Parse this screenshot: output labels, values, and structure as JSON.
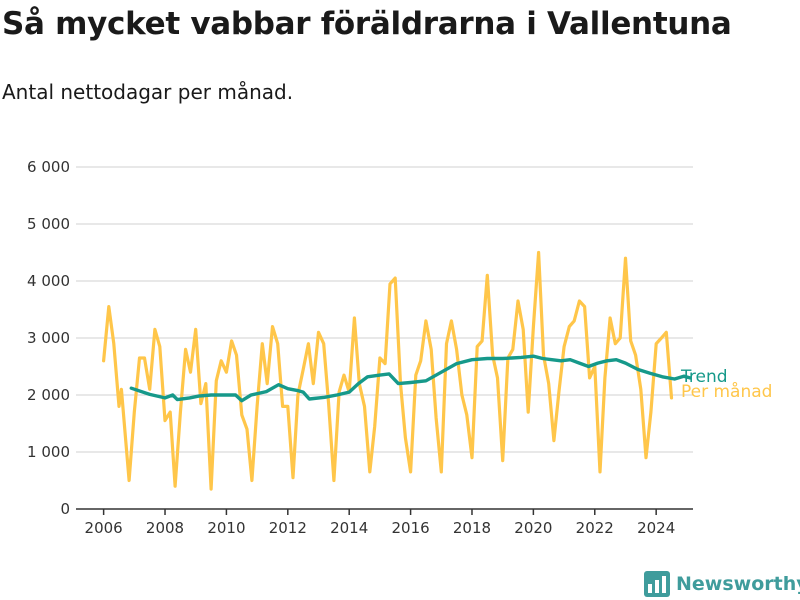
{
  "title": "Så mycket vabbar föräldrarna i Vallentuna",
  "subtitle": "Antal nettodagar per månad.",
  "brand": {
    "name": "Newsworthy"
  },
  "colors": {
    "trend": "#16998a",
    "monthly": "#ffc64a",
    "grid": "#d9d9d9",
    "axis": "#333333"
  },
  "chart_data": {
    "type": "line",
    "title": "Så mycket vabbar föräldrarna i Vallentuna",
    "subtitle": "Antal nettodagar per månad.",
    "xlabel": "",
    "ylabel": "",
    "xlim": [
      2005.1,
      2025.2
    ],
    "ylim": [
      0,
      6000
    ],
    "x_ticks": [
      2006,
      2008,
      2010,
      2012,
      2014,
      2016,
      2018,
      2020,
      2022,
      2024
    ],
    "x_tick_labels": [
      "2006",
      "2008",
      "2010",
      "2012",
      "2014",
      "2016",
      "2018",
      "2020",
      "2022",
      "2024"
    ],
    "y_ticks": [
      0,
      1000,
      2000,
      3000,
      4000,
      5000,
      6000
    ],
    "y_tick_labels": [
      "0",
      "1 000",
      "2 000",
      "3 000",
      "4 000",
      "5 000",
      "6 000"
    ],
    "grid": "horizontal",
    "legend": "direct labels at line ends",
    "series": [
      {
        "name": "Per månad",
        "color": "#ffc64a",
        "points": [
          [
            2006.0,
            2600
          ],
          [
            2006.17,
            3550
          ],
          [
            2006.33,
            2900
          ],
          [
            2006.5,
            1800
          ],
          [
            2006.58,
            2100
          ],
          [
            2006.83,
            500
          ],
          [
            2007.0,
            1700
          ],
          [
            2007.17,
            2650
          ],
          [
            2007.33,
            2650
          ],
          [
            2007.5,
            2100
          ],
          [
            2007.67,
            3150
          ],
          [
            2007.83,
            2850
          ],
          [
            2008.0,
            1550
          ],
          [
            2008.17,
            1700
          ],
          [
            2008.33,
            400
          ],
          [
            2008.5,
            1700
          ],
          [
            2008.67,
            2800
          ],
          [
            2008.83,
            2400
          ],
          [
            2009.0,
            3150
          ],
          [
            2009.17,
            1850
          ],
          [
            2009.33,
            2200
          ],
          [
            2009.5,
            350
          ],
          [
            2009.67,
            2250
          ],
          [
            2009.83,
            2600
          ],
          [
            2010.0,
            2400
          ],
          [
            2010.17,
            2950
          ],
          [
            2010.33,
            2700
          ],
          [
            2010.5,
            1650
          ],
          [
            2010.67,
            1400
          ],
          [
            2010.83,
            500
          ],
          [
            2011.0,
            1800
          ],
          [
            2011.17,
            2900
          ],
          [
            2011.33,
            2200
          ],
          [
            2011.5,
            3200
          ],
          [
            2011.67,
            2900
          ],
          [
            2011.83,
            1800
          ],
          [
            2012.0,
            1800
          ],
          [
            2012.17,
            550
          ],
          [
            2012.33,
            2000
          ],
          [
            2012.5,
            2450
          ],
          [
            2012.67,
            2900
          ],
          [
            2012.83,
            2200
          ],
          [
            2013.0,
            3100
          ],
          [
            2013.17,
            2900
          ],
          [
            2013.33,
            1850
          ],
          [
            2013.5,
            500
          ],
          [
            2013.67,
            2050
          ],
          [
            2013.83,
            2350
          ],
          [
            2014.0,
            2050
          ],
          [
            2014.17,
            3350
          ],
          [
            2014.33,
            2200
          ],
          [
            2014.5,
            1800
          ],
          [
            2014.67,
            650
          ],
          [
            2014.83,
            1450
          ],
          [
            2015.0,
            2650
          ],
          [
            2015.17,
            2550
          ],
          [
            2015.33,
            3950
          ],
          [
            2015.5,
            4050
          ],
          [
            2015.67,
            2200
          ],
          [
            2015.83,
            1250
          ],
          [
            2016.0,
            650
          ],
          [
            2016.17,
            2350
          ],
          [
            2016.33,
            2600
          ],
          [
            2016.5,
            3300
          ],
          [
            2016.67,
            2800
          ],
          [
            2016.83,
            1600
          ],
          [
            2017.0,
            650
          ],
          [
            2017.17,
            2900
          ],
          [
            2017.33,
            3300
          ],
          [
            2017.5,
            2800
          ],
          [
            2017.67,
            2000
          ],
          [
            2017.83,
            1650
          ],
          [
            2018.0,
            900
          ],
          [
            2018.17,
            2850
          ],
          [
            2018.33,
            2950
          ],
          [
            2018.5,
            4100
          ],
          [
            2018.67,
            2700
          ],
          [
            2018.83,
            2300
          ],
          [
            2019.0,
            850
          ],
          [
            2019.17,
            2650
          ],
          [
            2019.33,
            2800
          ],
          [
            2019.5,
            3650
          ],
          [
            2019.67,
            3150
          ],
          [
            2019.83,
            1700
          ],
          [
            2020.0,
            3200
          ],
          [
            2020.17,
            4500
          ],
          [
            2020.33,
            2700
          ],
          [
            2020.5,
            2200
          ],
          [
            2020.67,
            1200
          ],
          [
            2020.83,
            2050
          ],
          [
            2021.0,
            2850
          ],
          [
            2021.17,
            3200
          ],
          [
            2021.33,
            3300
          ],
          [
            2021.5,
            3650
          ],
          [
            2021.67,
            3550
          ],
          [
            2021.83,
            2300
          ],
          [
            2022.0,
            2500
          ],
          [
            2022.17,
            650
          ],
          [
            2022.33,
            2300
          ],
          [
            2022.5,
            3350
          ],
          [
            2022.67,
            2900
          ],
          [
            2022.83,
            3000
          ],
          [
            2023.0,
            4400
          ],
          [
            2023.17,
            2950
          ],
          [
            2023.33,
            2700
          ],
          [
            2023.5,
            2100
          ],
          [
            2023.67,
            900
          ],
          [
            2023.83,
            1700
          ],
          [
            2024.0,
            2900
          ],
          [
            2024.17,
            3000
          ],
          [
            2024.33,
            3100
          ],
          [
            2024.5,
            1950
          ]
        ]
      },
      {
        "name": "Trend",
        "color": "#16998a",
        "points": [
          [
            2006.9,
            2120
          ],
          [
            2007.5,
            2010
          ],
          [
            2008.0,
            1950
          ],
          [
            2008.25,
            2000
          ],
          [
            2008.4,
            1920
          ],
          [
            2008.8,
            1950
          ],
          [
            2009.1,
            1980
          ],
          [
            2009.5,
            2000
          ],
          [
            2010.0,
            2000
          ],
          [
            2010.3,
            2000
          ],
          [
            2010.5,
            1900
          ],
          [
            2010.8,
            2000
          ],
          [
            2011.3,
            2060
          ],
          [
            2011.7,
            2180
          ],
          [
            2012.0,
            2110
          ],
          [
            2012.3,
            2080
          ],
          [
            2012.5,
            2050
          ],
          [
            2012.7,
            1930
          ],
          [
            2013.2,
            1960
          ],
          [
            2013.6,
            2000
          ],
          [
            2014.0,
            2050
          ],
          [
            2014.3,
            2200
          ],
          [
            2014.6,
            2320
          ],
          [
            2015.0,
            2350
          ],
          [
            2015.3,
            2370
          ],
          [
            2015.6,
            2200
          ],
          [
            2016.0,
            2220
          ],
          [
            2016.5,
            2250
          ],
          [
            2017.0,
            2400
          ],
          [
            2017.5,
            2550
          ],
          [
            2018.0,
            2620
          ],
          [
            2018.5,
            2640
          ],
          [
            2018.8,
            2640
          ],
          [
            2019.0,
            2640
          ],
          [
            2019.3,
            2650
          ],
          [
            2019.6,
            2660
          ],
          [
            2020.0,
            2680
          ],
          [
            2020.3,
            2640
          ],
          [
            2020.6,
            2620
          ],
          [
            2020.9,
            2600
          ],
          [
            2021.2,
            2620
          ],
          [
            2021.5,
            2560
          ],
          [
            2021.8,
            2500
          ],
          [
            2022.1,
            2560
          ],
          [
            2022.4,
            2600
          ],
          [
            2022.7,
            2620
          ],
          [
            2023.0,
            2560
          ],
          [
            2023.4,
            2450
          ],
          [
            2023.8,
            2380
          ],
          [
            2024.2,
            2320
          ],
          [
            2024.6,
            2280
          ],
          [
            2024.9,
            2330
          ],
          [
            2025.1,
            2300
          ]
        ]
      }
    ]
  }
}
